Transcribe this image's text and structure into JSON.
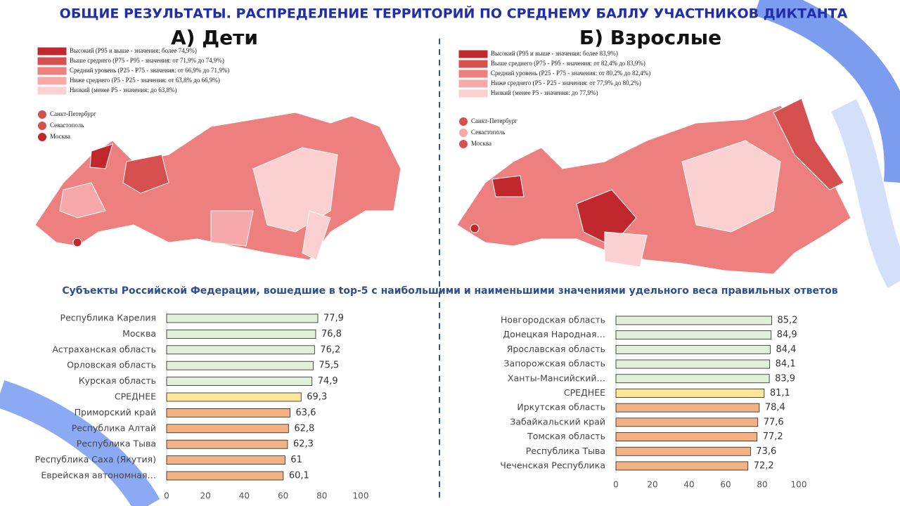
{
  "title": "ОБЩИЕ РЕЗУЛЬТАТЫ. РАСПРЕДЕЛЕНИЕ ТЕРРИТОРИЙ ПО СРЕДНЕМУ БАЛЛУ УЧАСТНИКОВ ДИКТАНТА",
  "maps": [
    {
      "heading": "А) Дети",
      "legend": [
        {
          "label": "Высокий (P95 и выше - значения: более 74,9%)",
          "color": "#c0282d"
        },
        {
          "label": "Выше среднего (P75 - P95 - значения: от 71,9% до 74,9%)",
          "color": "#d65050"
        },
        {
          "label": "Средний уровень (P25 - P75 - значения: от 66,9% до 71,9%)",
          "color": "#ee7f7f"
        },
        {
          "label": "Ниже среднего (P5 - P25 - значения: от 63,8% до 66,9%)",
          "color": "#f7a8a8"
        },
        {
          "label": "Низкий (менее P5 - значения: до 63,8%)",
          "color": "#fbd0d0"
        }
      ],
      "cities": [
        {
          "label": "Санкт-Петербург",
          "color": "#d65050"
        },
        {
          "label": "Севастополь",
          "color": "#d65050"
        },
        {
          "label": "Москва",
          "color": "#c0282d"
        }
      ]
    },
    {
      "heading": "Б) Взрослые",
      "legend": [
        {
          "label": "Высокий (P95 и выше - значения: более 83,9%)",
          "color": "#c0282d"
        },
        {
          "label": "Выше среднего (P75 - P95 - значения: от 82,4% до 83,9%)",
          "color": "#d65050"
        },
        {
          "label": "Средний уровень (P25 - P75 - значения: от 80,2% до 82,4%)",
          "color": "#ee7f7f"
        },
        {
          "label": "Ниже среднего (P5 - P25 - значения: от 77,9% до 80,2%)",
          "color": "#f7a8a8"
        },
        {
          "label": "Низкий (менее P5 - значения: до 77,9%)",
          "color": "#fbd0d0"
        }
      ],
      "cities": [
        {
          "label": "Санкт-Петербург",
          "color": "#d65050"
        },
        {
          "label": "Севастополь",
          "color": "#f7a8a8"
        },
        {
          "label": "Москва",
          "color": "#d65050"
        }
      ]
    }
  ],
  "charts_title": "Субъекты Российской Федерации, вошедшие в  top-5 с наибольшими и наименьшими значениями удельного веса правильных ответов",
  "chart_data": [
    {
      "type": "bar",
      "orientation": "horizontal",
      "categories": [
        "Республика Карелия",
        "Москва",
        "Астраханская область",
        "Орловская область",
        "Курская область",
        "СРЕДНЕЕ",
        "Приморский край",
        "Республика Алтай",
        "Республика Тыва",
        "Республика Саха (Якутия)",
        "Еврейская автономная…"
      ],
      "values": [
        77.9,
        76.8,
        76.2,
        75.5,
        74.9,
        69.3,
        63.6,
        62.8,
        62.3,
        61,
        60.1
      ],
      "value_labels": [
        "77,9",
        "76,8",
        "76,2",
        "75,5",
        "74,9",
        "69,3",
        "63,6",
        "62,8",
        "62,3",
        "61",
        "60,1"
      ],
      "colors": [
        "#e2efd9",
        "#e2efd9",
        "#e2efd9",
        "#e2efd9",
        "#e2efd9",
        "#ffe699",
        "#f4b183",
        "#f4b183",
        "#f4b183",
        "#f4b183",
        "#f4b183"
      ],
      "xlim": [
        0,
        100
      ],
      "xticks": [
        0,
        20,
        40,
        60,
        80,
        100
      ]
    },
    {
      "type": "bar",
      "orientation": "horizontal",
      "categories": [
        "Новгородская область",
        "Донецкая Народная…",
        "Ярославская область",
        "Запорожская область",
        "Ханты-Мансийский…",
        "СРЕДНЕЕ",
        "Иркутская область",
        "Забайкальский край",
        "Томская область",
        "Республика Тыва",
        "Чеченская Республика"
      ],
      "values": [
        85.2,
        84.9,
        84.4,
        84.1,
        83.9,
        81.1,
        78.4,
        77.6,
        77.2,
        73.6,
        72.2
      ],
      "value_labels": [
        "85,2",
        "84,9",
        "84,4",
        "84,1",
        "83,9",
        "81,1",
        "78,4",
        "77,6",
        "77,2",
        "73,6",
        "72,2"
      ],
      "colors": [
        "#e2efd9",
        "#e2efd9",
        "#e2efd9",
        "#e2efd9",
        "#e2efd9",
        "#ffe699",
        "#f4b183",
        "#f4b183",
        "#f4b183",
        "#f4b183",
        "#f4b183"
      ],
      "xlim": [
        0,
        100
      ],
      "xticks": [
        0,
        20,
        40,
        60,
        80,
        100
      ]
    }
  ]
}
